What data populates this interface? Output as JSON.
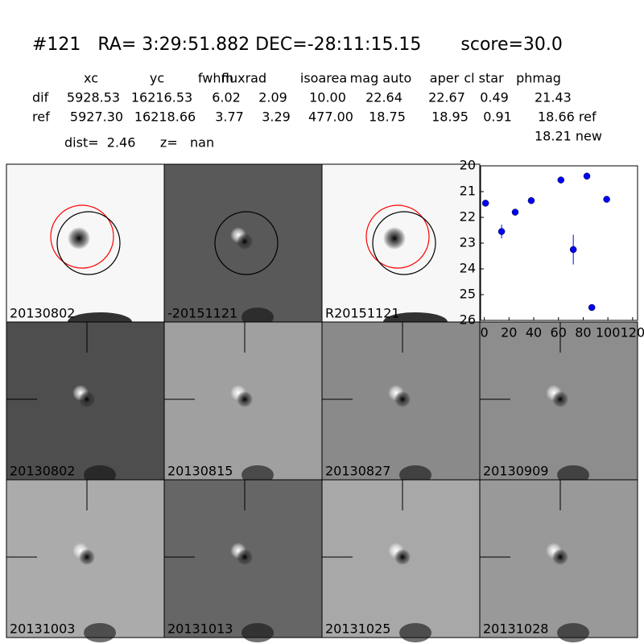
{
  "header": {
    "title": "#121   RA= 3:29:51.882 DEC=-28:11:15.15       score=30.0",
    "distance_line": "dist=  2.46      z=   nan"
  },
  "table": {
    "columns": [
      "xc",
      "yc",
      "fwhm",
      "fluxrad",
      "isoarea",
      "mag auto",
      "aper",
      "cl star",
      "phmag"
    ],
    "rows": [
      {
        "label": "dif",
        "values": [
          "5928.53",
          "16216.53",
          "6.02",
          "2.09",
          "10.00",
          "22.64",
          "22.67",
          "0.49",
          "21.43"
        ]
      },
      {
        "label": "ref",
        "values": [
          "5927.30",
          "16218.66",
          "3.77",
          "3.29",
          "477.00",
          "18.75",
          "18.95",
          "0.91",
          "18.66 ref"
        ]
      }
    ],
    "extra": "18.21 new"
  },
  "panels": [
    {
      "label": "20130802"
    },
    {
      "label": "-20151121"
    },
    {
      "label": "R20151121"
    },
    {
      "label": "20130802",
      "color": "#ff0000"
    },
    {
      "label": "20130815"
    },
    {
      "label": "20130827"
    },
    {
      "label": "20130909"
    },
    {
      "label": "20131003"
    },
    {
      "label": "20131013"
    },
    {
      "label": "20131025"
    },
    {
      "label": "20131028"
    }
  ],
  "chart_data": {
    "type": "errorbar",
    "color": "#0000ff",
    "x": [
      1,
      14,
      25,
      38,
      62,
      72,
      83,
      87,
      99
    ],
    "values": [
      21.45,
      22.55,
      21.8,
      21.35,
      20.55,
      23.25,
      20.4,
      25.5,
      21.3
    ],
    "errors": [
      0.1,
      0.27,
      0.1,
      0.07,
      0.05,
      0.58,
      0.05,
      0.12,
      0.07
    ],
    "xlim": [
      -3,
      124
    ],
    "xticks": [
      0,
      20,
      40,
      60,
      80,
      100,
      120
    ],
    "ylim": [
      26,
      20
    ],
    "yticks": [
      20,
      21,
      22,
      23,
      24,
      25,
      26
    ]
  }
}
